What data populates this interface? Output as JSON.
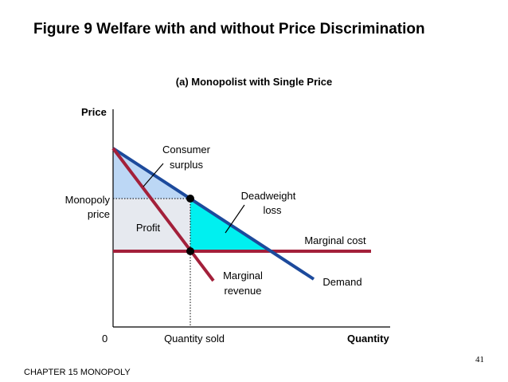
{
  "title": "Figure 9 Welfare with and without Price Discrimination",
  "subtitle": "(a) Monopolist with Single Price",
  "axes": {
    "y_label": "Price",
    "x_label": "Quantity",
    "origin": "0",
    "x_tick": "Quantity sold"
  },
  "labels": {
    "monopoly_price_1": "Monopoly",
    "monopoly_price_2": "price",
    "consumer_surplus_1": "Consumer",
    "consumer_surplus_2": "surplus",
    "deadweight_loss_1": "Deadweight",
    "deadweight_loss_2": "loss",
    "profit": "Profit",
    "marginal_cost": "Marginal cost",
    "marginal_revenue_1": "Marginal",
    "marginal_revenue_2": "revenue",
    "demand": "Demand"
  },
  "colors": {
    "demand": "#1c4a9c",
    "marginal_revenue": "#a3203a",
    "marginal_cost": "#a3203a",
    "consumer_surplus": "#bcd7f5",
    "profit": "#e6e9ef",
    "deadweight_loss": "#00f0f0"
  },
  "page_number": "41",
  "footer": "CHAPTER 15 MONOPOLY"
}
